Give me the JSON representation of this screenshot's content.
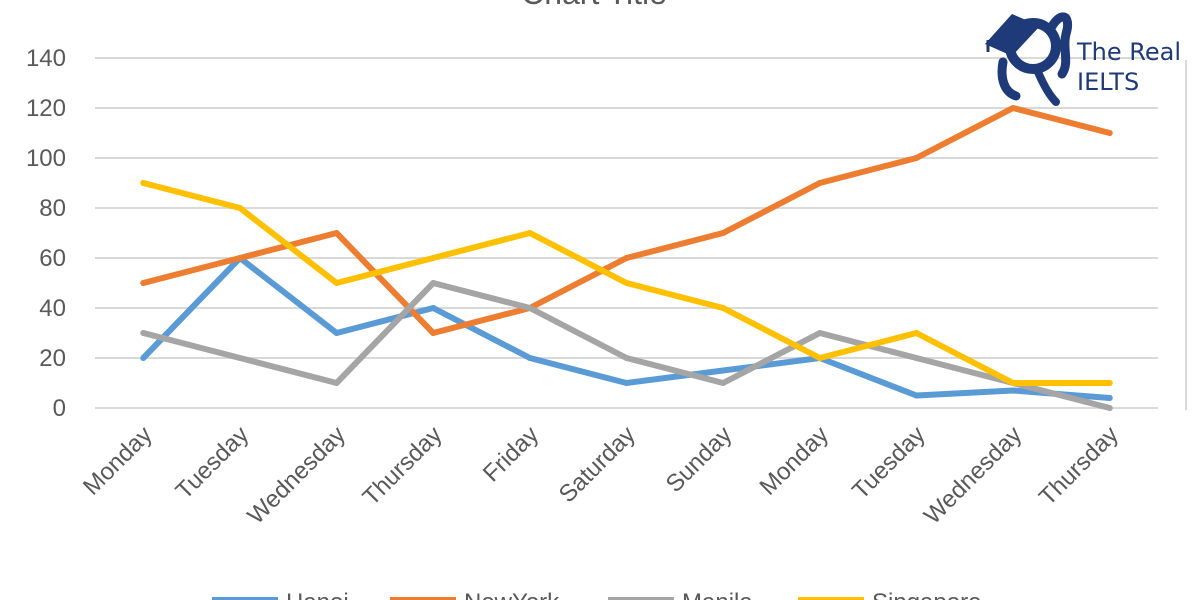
{
  "chart_data": {
    "type": "line",
    "title": "Chart Title",
    "categories": [
      "Monday",
      "Tuesday",
      "Wednesday",
      "Thursday",
      "Friday",
      "Saturday",
      "Sunday",
      "Monday",
      "Tuesday",
      "Wednesday",
      "Thursday"
    ],
    "ylim": [
      0,
      140
    ],
    "yticks": [
      "0",
      "20",
      "40",
      "60",
      "80",
      "100",
      "120",
      "140"
    ],
    "grid": true,
    "legend_position": "bottom",
    "series": [
      {
        "name": "Hanoi",
        "color": "#5b9bd5",
        "values": [
          20,
          60,
          30,
          40,
          20,
          10,
          15,
          20,
          5,
          7,
          4
        ]
      },
      {
        "name": "NewYork",
        "color": "#ed7d31",
        "values": [
          50,
          60,
          70,
          30,
          40,
          60,
          70,
          90,
          100,
          120,
          110
        ]
      },
      {
        "name": "Manila",
        "color": "#a5a5a5",
        "values": [
          30,
          20,
          10,
          50,
          40,
          20,
          10,
          30,
          20,
          10,
          0
        ]
      },
      {
        "name": "Singapore",
        "color": "#ffc000",
        "values": [
          90,
          80,
          50,
          60,
          70,
          50,
          40,
          20,
          30,
          10,
          10
        ]
      }
    ]
  },
  "logo": {
    "line1": "The Real",
    "line2": "IELTS",
    "color": "#1f3a78",
    "icon": "graduate-cap-icon"
  }
}
